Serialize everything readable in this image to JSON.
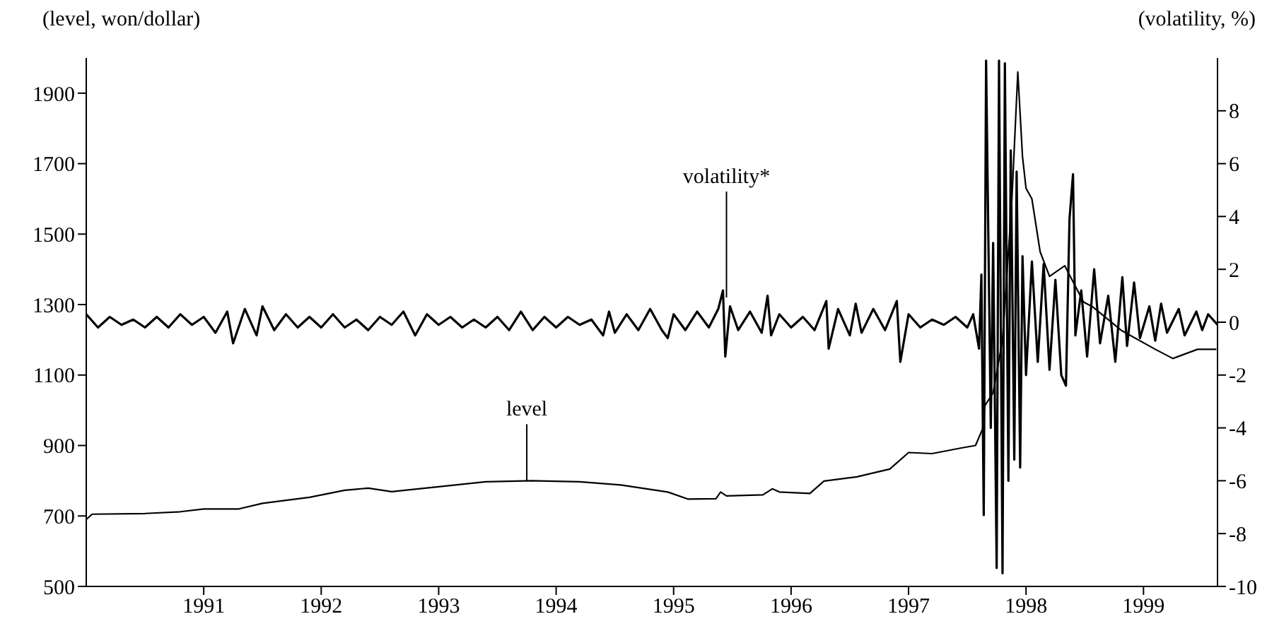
{
  "chart_data": {
    "type": "line",
    "ylabel": "(level, won/dollar)",
    "y2label": "(volatility, %)",
    "xlim": [
      1990,
      1999.63
    ],
    "xticks": [
      1991,
      1992,
      1993,
      1994,
      1995,
      1996,
      1997,
      1998,
      1999
    ],
    "ylim": [
      500,
      2000
    ],
    "yticks": [
      500,
      700,
      900,
      1100,
      1300,
      1500,
      1700,
      1900
    ],
    "y2lim": [
      -10,
      10
    ],
    "y2ticks": [
      -10,
      -8,
      -6,
      -4,
      -2,
      0,
      2,
      4,
      6,
      8
    ],
    "annotations": [
      {
        "text": "level",
        "x": 1993.75,
        "y": 800
      },
      {
        "text": "volatility*",
        "x": 1995.45,
        "y": 1320
      }
    ],
    "series": [
      {
        "color": "#000000",
        "axis": "y",
        "x": [
          1990.0,
          1990.05,
          1990.5,
          1990.8,
          1991.0,
          1991.3,
          1991.5,
          1991.9,
          1992.2,
          1992.4,
          1992.6,
          1993.0,
          1993.4,
          1993.8,
          1994.2,
          1994.55,
          1994.95,
          1995.12,
          1995.36,
          1995.4,
          1995.45,
          1995.76,
          1995.84,
          1995.9,
          1996.16,
          1996.28,
          1996.56,
          1996.84,
          1997.0,
          1997.2,
          1997.45,
          1997.57,
          1997.63,
          1997.65,
          1997.72,
          1997.8,
          1997.88,
          1997.93,
          1997.97,
          1998.0,
          1998.05,
          1998.12,
          1998.2,
          1998.33,
          1998.49,
          1998.57,
          1998.81,
          1999.1,
          1999.25,
          1999.46,
          1999.62
        ],
        "values": [
          690,
          705,
          707,
          712,
          720,
          720,
          736,
          753,
          773,
          779,
          769,
          783,
          797,
          800,
          797,
          788,
          768,
          748,
          749,
          768,
          757,
          760,
          777,
          768,
          764,
          799,
          811,
          833,
          880,
          877,
          893,
          900,
          947,
          1013,
          1050,
          1200,
          1600,
          1960,
          1720,
          1630,
          1600,
          1450,
          1380,
          1410,
          1307,
          1293,
          1227,
          1173,
          1147,
          1173,
          1173
        ]
      },
      {
        "color": "#000000",
        "axis": "y2",
        "x": [
          1990.0,
          1990.1,
          1990.2,
          1990.3,
          1990.4,
          1990.5,
          1990.6,
          1990.7,
          1990.8,
          1990.9,
          1991.0,
          1991.1,
          1991.2,
          1991.25,
          1991.35,
          1991.45,
          1991.5,
          1991.6,
          1991.7,
          1991.8,
          1991.9,
          1992.0,
          1992.1,
          1992.2,
          1992.3,
          1992.4,
          1992.5,
          1992.6,
          1992.7,
          1992.8,
          1992.9,
          1993.0,
          1993.1,
          1993.2,
          1993.3,
          1993.4,
          1993.5,
          1993.6,
          1993.7,
          1993.8,
          1993.9,
          1994.0,
          1994.1,
          1994.2,
          1994.3,
          1994.4,
          1994.45,
          1994.5,
          1994.6,
          1994.7,
          1994.8,
          1994.9,
          1994.95,
          1995.0,
          1995.1,
          1995.2,
          1995.3,
          1995.38,
          1995.42,
          1995.44,
          1995.48,
          1995.55,
          1995.65,
          1995.75,
          1995.8,
          1995.83,
          1995.9,
          1996.0,
          1996.1,
          1996.2,
          1996.3,
          1996.32,
          1996.4,
          1996.5,
          1996.55,
          1996.6,
          1996.7,
          1996.8,
          1996.9,
          1996.93,
          1997.0,
          1997.1,
          1997.2,
          1997.3,
          1997.4,
          1997.5,
          1997.55,
          1997.6,
          1997.62,
          1997.64,
          1997.66,
          1997.7,
          1997.72,
          1997.75,
          1997.77,
          1997.8,
          1997.82,
          1997.85,
          1997.87,
          1997.9,
          1997.92,
          1997.95,
          1997.97,
          1998.0,
          1998.05,
          1998.1,
          1998.15,
          1998.2,
          1998.25,
          1998.3,
          1998.34,
          1998.37,
          1998.4,
          1998.42,
          1998.47,
          1998.52,
          1998.58,
          1998.63,
          1998.7,
          1998.76,
          1998.82,
          1998.86,
          1998.92,
          1998.97,
          1999.05,
          1999.1,
          1999.15,
          1999.2,
          1999.3,
          1999.35,
          1999.45,
          1999.5,
          1999.55,
          1999.63
        ],
        "values": [
          0.3,
          -0.2,
          0.2,
          -0.1,
          0.1,
          -0.2,
          0.2,
          -0.2,
          0.3,
          -0.1,
          0.2,
          -0.4,
          0.4,
          -0.8,
          0.5,
          -0.5,
          0.6,
          -0.3,
          0.3,
          -0.2,
          0.2,
          -0.2,
          0.3,
          -0.2,
          0.1,
          -0.3,
          0.2,
          -0.1,
          0.4,
          -0.5,
          0.3,
          -0.1,
          0.2,
          -0.2,
          0.1,
          -0.2,
          0.2,
          -0.3,
          0.4,
          -0.3,
          0.2,
          -0.2,
          0.2,
          -0.1,
          0.1,
          -0.5,
          0.4,
          -0.4,
          0.3,
          -0.3,
          0.5,
          -0.3,
          -0.6,
          0.3,
          -0.3,
          0.4,
          -0.2,
          0.5,
          1.2,
          -1.3,
          0.6,
          -0.3,
          0.4,
          -0.4,
          1.0,
          -0.5,
          0.3,
          -0.2,
          0.2,
          -0.3,
          0.8,
          -1.0,
          0.5,
          -0.5,
          0.7,
          -0.4,
          0.5,
          -0.3,
          0.8,
          -1.5,
          0.3,
          -0.2,
          0.1,
          -0.1,
          0.2,
          -0.2,
          0.3,
          -1.0,
          1.8,
          -7.3,
          9.9,
          -4,
          3,
          -9.3,
          9.9,
          -9.5,
          9.8,
          -6,
          6.5,
          -5.2,
          5.7,
          -5.5,
          2.5,
          -2.0,
          2.3,
          -1.5,
          2.2,
          -1.8,
          1.6,
          -2.0,
          -2.4,
          3.9,
          5.6,
          -0.5,
          1.2,
          -1.3,
          2.0,
          -0.8,
          1.0,
          -1.5,
          1.7,
          -0.9,
          1.5,
          -0.6,
          0.6,
          -0.7,
          0.7,
          -0.4,
          0.5,
          -0.5,
          0.4,
          -0.3,
          0.3,
          -0.1
        ]
      }
    ]
  }
}
